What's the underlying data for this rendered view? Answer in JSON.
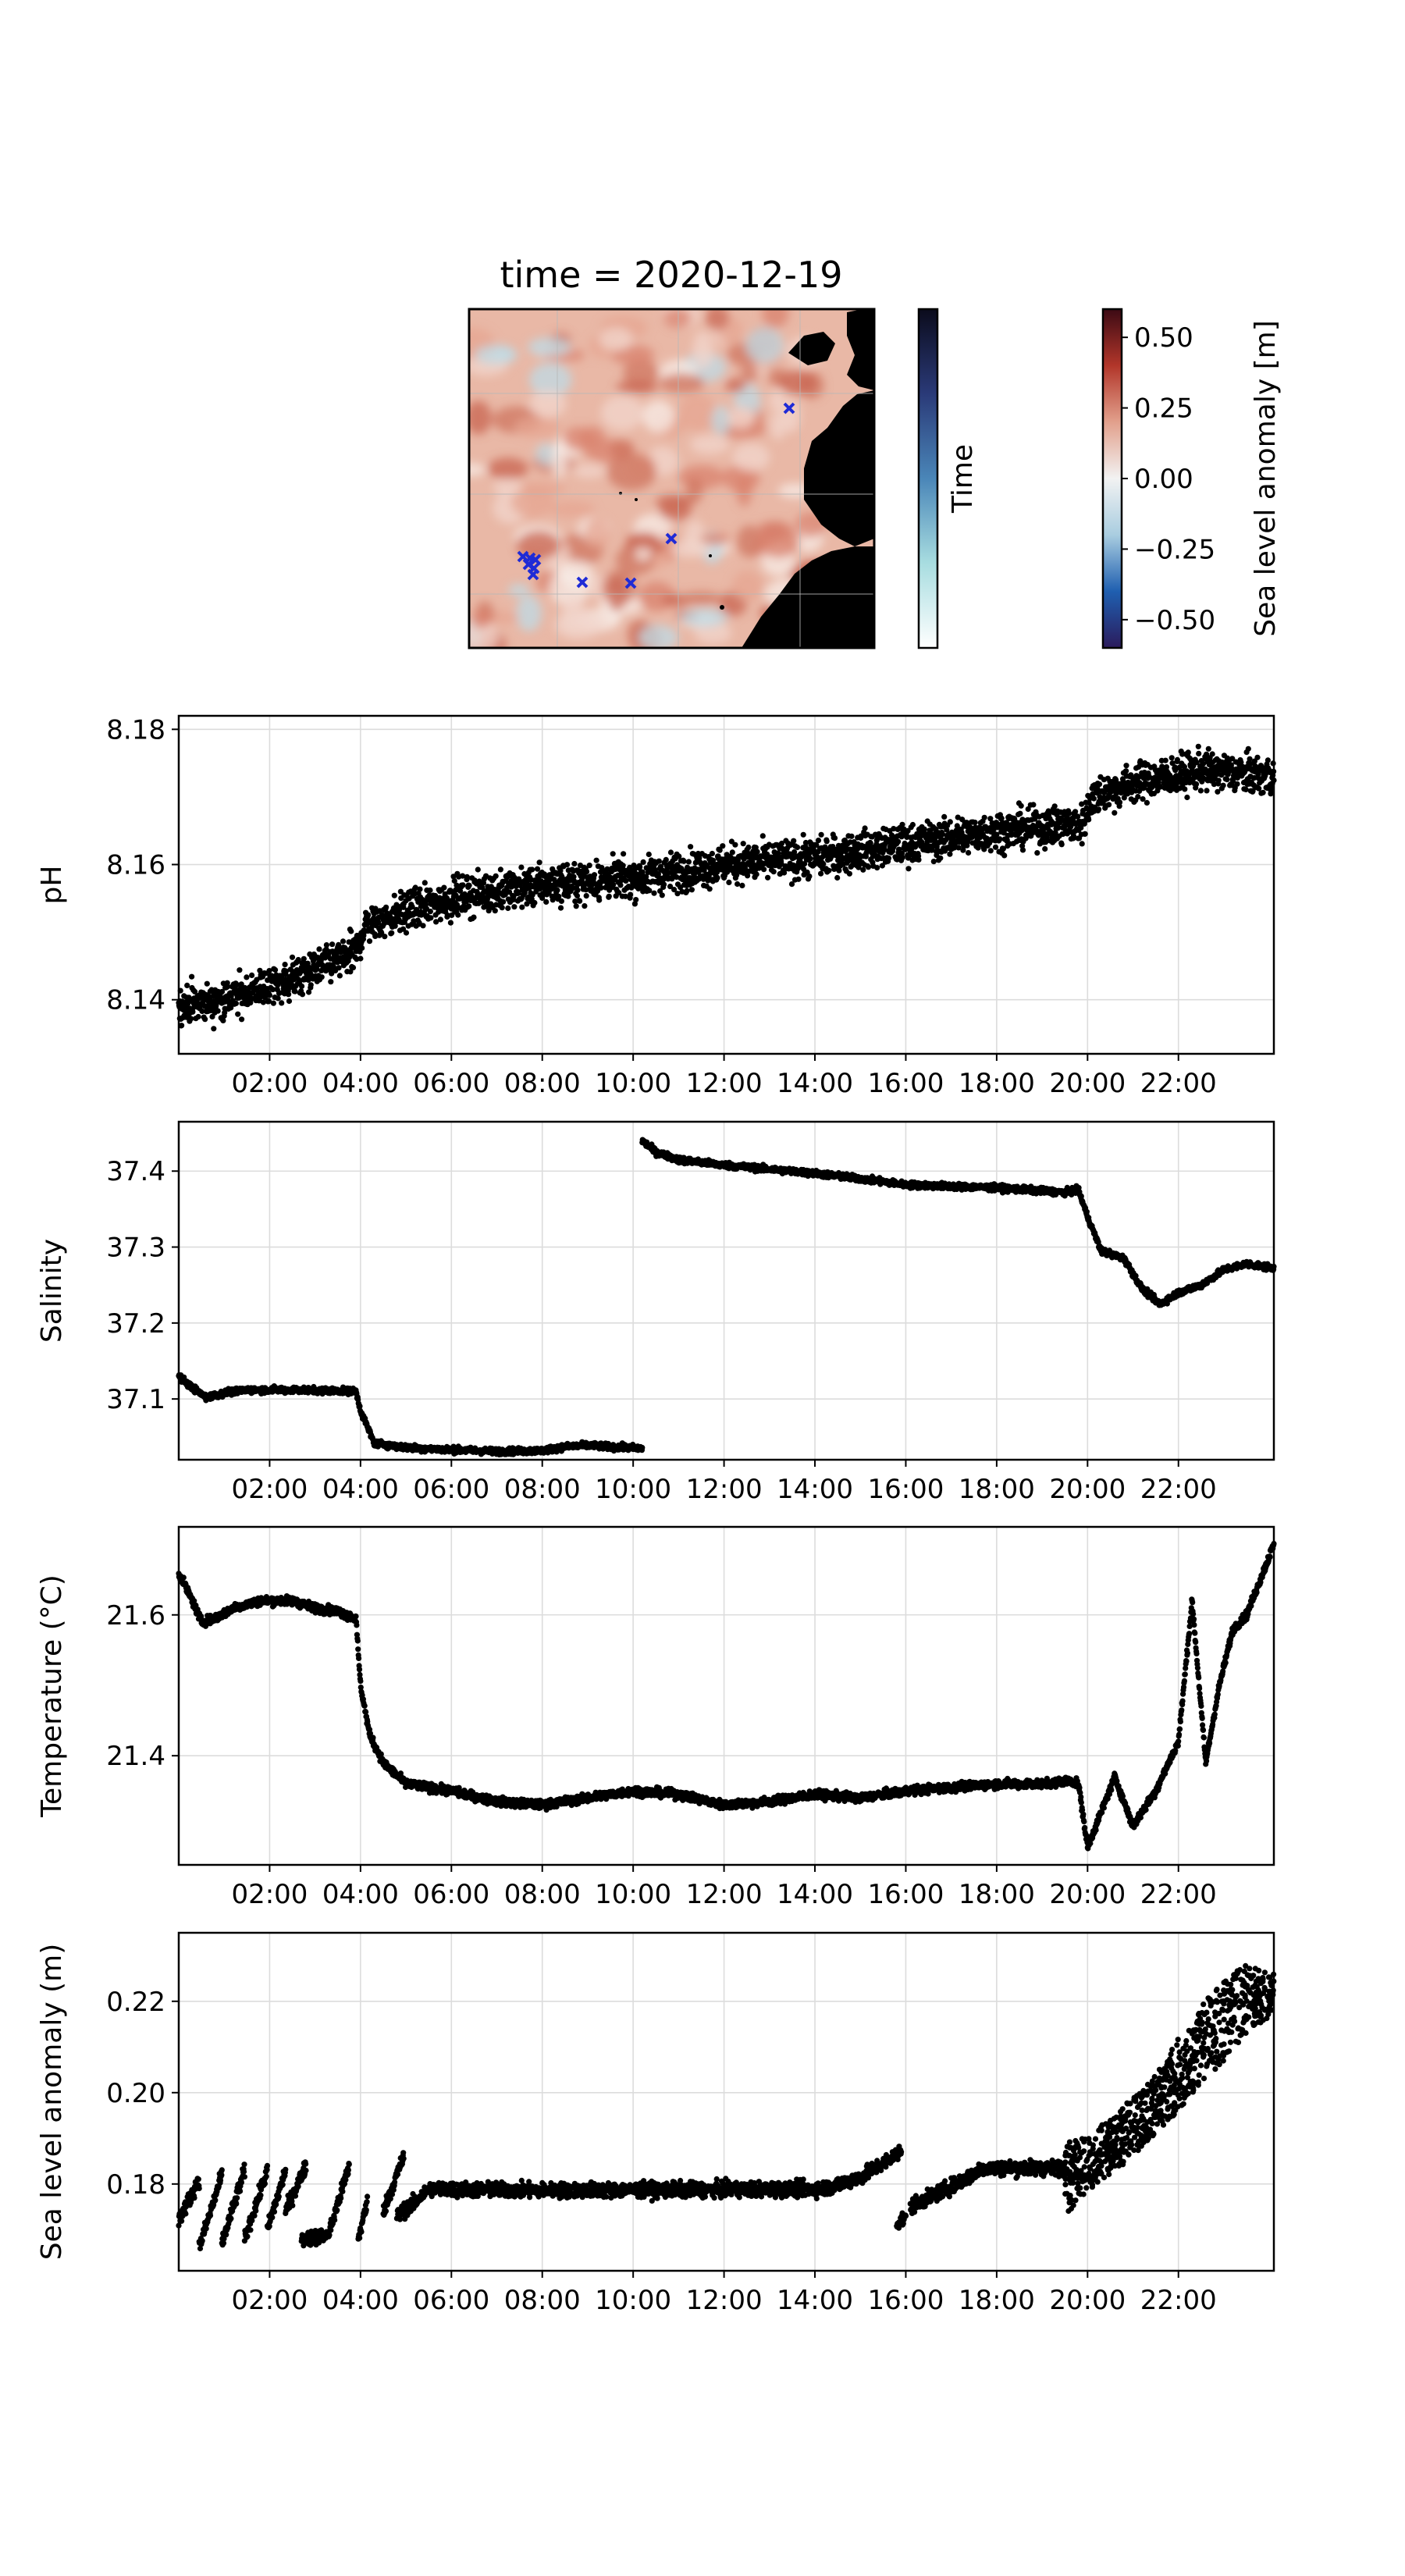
{
  "map_panel": {
    "title": "time = 2020-12-19",
    "time_colorbar_label": "Time",
    "sla_colorbar_label": "Sea level anomaly [m]",
    "sla_colorbar_ticks": [
      "0.50",
      "0.25",
      "0.00",
      "−0.25",
      "−0.50"
    ],
    "sla_colorbar_range": [
      -0.6,
      0.6
    ],
    "sla_colormap": [
      "#2b1b5c",
      "#1f5fb0",
      "#a9cde0",
      "#f2f2f2",
      "#e2a08c",
      "#b2362a",
      "#3c0a14"
    ],
    "time_colormap": [
      "#ffffff",
      "#a8dde0",
      "#4a86b8",
      "#2a3a78",
      "#0b0b1c"
    ],
    "track_marker_color": "#1f2bd6",
    "land_color": "#000000",
    "ocean_base_color": "#e9b8a6"
  },
  "chart_data": [
    {
      "type": "scatter",
      "ylabel": "pH",
      "xlabel": "",
      "x_tick_labels": [
        "02:00",
        "04:00",
        "06:00",
        "08:00",
        "10:00",
        "12:00",
        "14:00",
        "16:00",
        "18:00",
        "20:00",
        "22:00"
      ],
      "x_ticks_hours": [
        2,
        4,
        6,
        8,
        10,
        12,
        14,
        16,
        18,
        20,
        22
      ],
      "xlim_hours": [
        0.0,
        24.1
      ],
      "ylim": [
        8.132,
        8.182
      ],
      "y_ticks": [
        8.14,
        8.16,
        8.18
      ],
      "y_tick_labels": [
        "8.14",
        "8.16",
        "8.18"
      ],
      "grid": true,
      "marker_color": "#000000",
      "noise": 0.0014,
      "segments": [
        {
          "x": [
            0.0,
            1.0,
            2.5,
            3.9,
            4.1,
            5.0,
            6.0,
            7.0,
            8.0,
            10.0,
            12.0,
            14.0,
            16.0,
            18.0,
            19.9,
            20.1,
            21.0,
            22.5,
            24.1
          ],
          "y": [
            8.139,
            8.14,
            8.143,
            8.147,
            8.151,
            8.153,
            8.155,
            8.156,
            8.157,
            8.158,
            8.16,
            8.161,
            8.163,
            8.165,
            8.166,
            8.17,
            8.172,
            8.174,
            8.173
          ]
        }
      ]
    },
    {
      "type": "scatter",
      "ylabel": "Salinity",
      "xlabel": "",
      "x_tick_labels": [
        "02:00",
        "04:00",
        "06:00",
        "08:00",
        "10:00",
        "12:00",
        "14:00",
        "16:00",
        "18:00",
        "20:00",
        "22:00"
      ],
      "x_ticks_hours": [
        2,
        4,
        6,
        8,
        10,
        12,
        14,
        16,
        18,
        20,
        22
      ],
      "xlim_hours": [
        0.0,
        24.1
      ],
      "ylim": [
        37.02,
        37.465
      ],
      "y_ticks": [
        37.1,
        37.2,
        37.3,
        37.4
      ],
      "y_tick_labels": [
        "37.1",
        "37.2",
        "37.3",
        "37.4"
      ],
      "grid": true,
      "marker_color": "#000000",
      "noise": 0.002,
      "segments": [
        {
          "x": [
            0.0,
            0.3,
            0.6,
            1.0,
            1.5,
            2.5,
            3.5,
            3.9,
            4.0,
            4.3,
            5.0,
            6.0,
            7.0,
            8.0,
            8.5,
            9.0,
            9.5,
            10.2
          ],
          "y": [
            37.13,
            37.115,
            37.102,
            37.108,
            37.112,
            37.112,
            37.111,
            37.11,
            37.085,
            37.042,
            37.036,
            37.033,
            37.031,
            37.032,
            37.037,
            37.039,
            37.037,
            37.035
          ]
        },
        {
          "x": [
            10.2,
            10.5,
            11.0,
            12.0,
            14.0,
            15.0,
            16.0,
            18.0,
            19.5,
            19.8,
            20.0,
            20.3,
            20.8,
            21.2,
            21.6,
            22.0,
            22.5,
            23.0,
            23.5,
            24.1
          ],
          "y": [
            37.44,
            37.425,
            37.415,
            37.408,
            37.397,
            37.39,
            37.382,
            37.378,
            37.372,
            37.375,
            37.34,
            37.295,
            37.285,
            37.245,
            37.225,
            37.24,
            37.25,
            37.27,
            37.278,
            37.272
          ]
        }
      ]
    },
    {
      "type": "scatter",
      "ylabel": "Temperature (°C)",
      "xlabel": "",
      "x_tick_labels": [
        "02:00",
        "04:00",
        "06:00",
        "08:00",
        "10:00",
        "12:00",
        "14:00",
        "16:00",
        "18:00",
        "20:00",
        "22:00"
      ],
      "x_ticks_hours": [
        2,
        4,
        6,
        8,
        10,
        12,
        14,
        16,
        18,
        20,
        22
      ],
      "xlim_hours": [
        0.0,
        24.1
      ],
      "ylim": [
        21.245,
        21.725
      ],
      "y_ticks": [
        21.4,
        21.6
      ],
      "y_tick_labels": [
        "21.4",
        "21.6"
      ],
      "grid": true,
      "marker_color": "#000000",
      "noise": 0.003,
      "segments": [
        {
          "x": [
            0.0,
            0.3,
            0.5,
            0.8,
            1.2,
            1.8,
            2.5,
            3.0,
            3.5,
            3.9,
            4.0,
            4.2,
            4.5,
            5.0,
            6.0,
            7.0,
            8.0,
            9.0,
            10.0,
            11.0,
            12.0,
            13.0,
            14.0,
            15.0,
            16.0,
            17.0,
            18.0,
            19.0,
            19.6,
            19.8,
            20.0,
            20.3,
            20.6,
            21.0,
            21.5,
            22.0,
            22.3,
            22.6,
            22.9,
            23.2,
            23.5,
            24.1
          ],
          "y": [
            21.66,
            21.62,
            21.59,
            21.595,
            21.61,
            21.62,
            21.62,
            21.61,
            21.605,
            21.595,
            21.5,
            21.43,
            21.39,
            21.36,
            21.35,
            21.335,
            21.33,
            21.34,
            21.35,
            21.345,
            21.33,
            21.335,
            21.345,
            21.34,
            21.35,
            21.355,
            21.36,
            21.36,
            21.365,
            21.36,
            21.27,
            21.32,
            21.37,
            21.3,
            21.35,
            21.42,
            21.62,
            21.39,
            21.5,
            21.58,
            21.6,
            21.7
          ]
        }
      ]
    },
    {
      "type": "scatter",
      "ylabel": "Sea level anomaly (m)",
      "xlabel": "",
      "x_tick_labels": [
        "02:00",
        "04:00",
        "06:00",
        "08:00",
        "10:00",
        "12:00",
        "14:00",
        "16:00",
        "18:00",
        "20:00",
        "22:00"
      ],
      "x_ticks_hours": [
        2,
        4,
        6,
        8,
        10,
        12,
        14,
        16,
        18,
        20,
        22
      ],
      "xlim_hours": [
        0.0,
        24.1
      ],
      "ylim": [
        0.161,
        0.235
      ],
      "y_ticks": [
        0.18,
        0.2,
        0.22
      ],
      "y_tick_labels": [
        "0.18",
        "0.20",
        "0.22"
      ],
      "grid": true,
      "marker_color": "#000000",
      "noise": 0.0008,
      "segments": [
        {
          "x": [
            0.0,
            0.45
          ],
          "y": [
            0.172,
            0.181
          ]
        },
        {
          "x": [
            0.45,
            0.95
          ],
          "y": [
            0.166,
            0.182
          ]
        },
        {
          "x": [
            0.95,
            1.45
          ],
          "y": [
            0.167,
            0.183
          ]
        },
        {
          "x": [
            1.45,
            1.95
          ],
          "y": [
            0.168,
            0.183
          ]
        },
        {
          "x": [
            1.95,
            2.35
          ],
          "y": [
            0.17,
            0.183
          ]
        },
        {
          "x": [
            2.35,
            2.8
          ],
          "y": [
            0.174,
            0.184
          ]
        },
        {
          "x": [
            2.7,
            3.1
          ],
          "y": [
            0.168,
            0.1685
          ]
        },
        {
          "x": [
            3.1,
            3.25
          ],
          "y": [
            0.1685,
            0.1688
          ]
        },
        {
          "x": [
            3.3,
            3.75
          ],
          "y": [
            0.169,
            0.184
          ]
        },
        {
          "x": [
            3.95,
            4.15
          ],
          "y": [
            0.168,
            0.176
          ]
        },
        {
          "x": [
            4.5,
            4.95
          ],
          "y": [
            0.174,
            0.186
          ]
        },
        {
          "x": [
            4.8,
            5.2
          ],
          "y": [
            0.173,
            0.176
          ]
        },
        {
          "x": [
            5.2,
            5.5,
            6.0,
            8.0,
            10.0,
            12.0,
            14.0,
            14.3
          ],
          "y": [
            0.176,
            0.179,
            0.1788,
            0.1786,
            0.1787,
            0.1788,
            0.1789,
            0.1792
          ]
        },
        {
          "x": [
            14.3,
            15.0,
            15.5,
            15.9
          ],
          "y": [
            0.1792,
            0.1815,
            0.1845,
            0.1873
          ]
        },
        {
          "x": [
            15.8,
            16.0
          ],
          "y": [
            0.1715,
            0.1725
          ]
        },
        {
          "x": [
            16.1,
            16.6,
            17.2,
            17.7
          ],
          "y": [
            0.175,
            0.1775,
            0.1805,
            0.1835
          ]
        },
        {
          "x": [
            17.7,
            18.5,
            19.5
          ],
          "y": [
            0.1835,
            0.1835,
            0.1835
          ]
        }
      ],
      "bands": [
        {
          "x": [
            19.5,
            20.0,
            20.5,
            21.0,
            21.5,
            22.0,
            22.5,
            23.0,
            23.5,
            24.1
          ],
          "lo": [
            0.173,
            0.178,
            0.182,
            0.186,
            0.191,
            0.196,
            0.202,
            0.207,
            0.213,
            0.217
          ],
          "hi": [
            0.189,
            0.191,
            0.194,
            0.199,
            0.204,
            0.212,
            0.219,
            0.225,
            0.228,
            0.226
          ]
        }
      ]
    }
  ]
}
